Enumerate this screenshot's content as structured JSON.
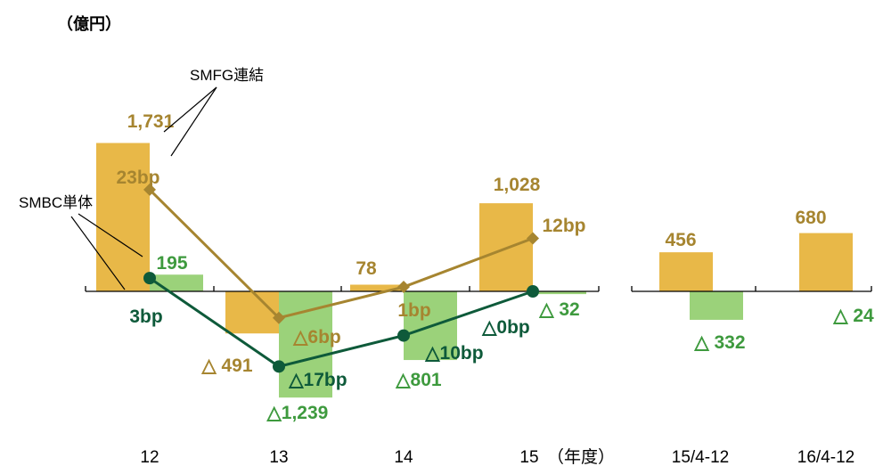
{
  "colors": {
    "smfg_bar": "#E8B848",
    "smbc_bar": "#9BD27A",
    "smfg_line": "#A68530",
    "smbc_line": "#0E5A3A",
    "smfg_text": "#A68530",
    "smbc_text": "#3E9A3E",
    "axis": "#000000"
  },
  "chart_data": {
    "type": "bar",
    "unit_label": "（億円）",
    "x_suffix": "（年度）",
    "categories": [
      "12",
      "13",
      "14",
      "15",
      "15/4-12",
      "16/4-12"
    ],
    "series": [
      {
        "name": "SMFG連結",
        "values": [
          1731,
          -491,
          78,
          1028,
          456,
          680
        ],
        "value_labels": [
          "1,731",
          "△ 491",
          "78",
          "1,028",
          "456",
          "680"
        ]
      },
      {
        "name": "SMBC単体",
        "values": [
          195,
          -1239,
          -801,
          -32,
          -332,
          -24
        ],
        "value_labels": [
          "195",
          "△1,239",
          "△801",
          "△ 32",
          "△ 332",
          "△ 24"
        ]
      }
    ],
    "line_series": [
      {
        "name": "SMFG連結",
        "categories": [
          "12",
          "13",
          "14",
          "15"
        ],
        "values_bp": [
          23,
          -6,
          1,
          12
        ],
        "value_labels": [
          "23bp",
          "△6bp",
          "1bp",
          "12bp"
        ]
      },
      {
        "name": "SMBC単体",
        "categories": [
          "12",
          "13",
          "14",
          "15"
        ],
        "values_bp": [
          3,
          -17,
          -10,
          0
        ],
        "value_labels": [
          "3bp",
          "△17bp",
          "△10bp",
          "△0bp"
        ]
      }
    ],
    "callouts": [
      "SMFG連結",
      "SMBC単体"
    ]
  }
}
